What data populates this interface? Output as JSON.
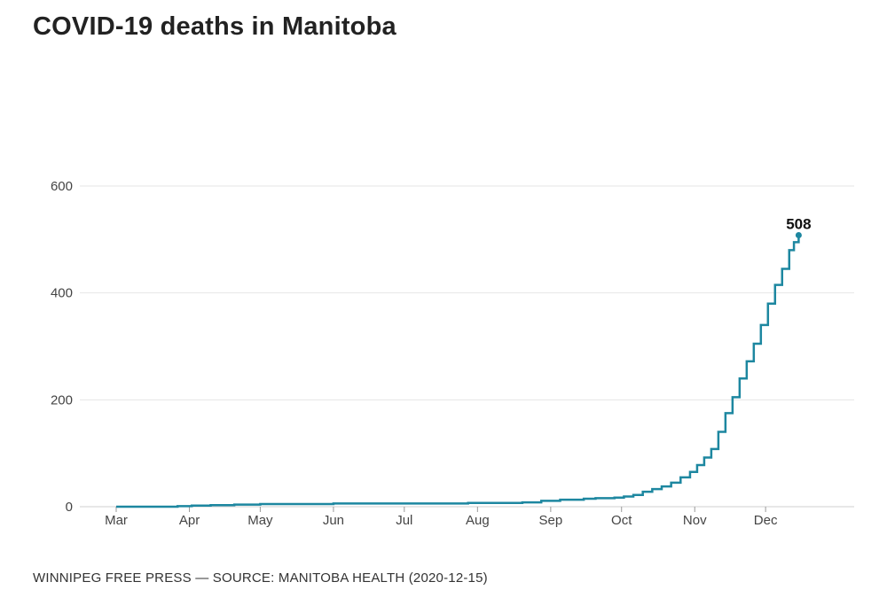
{
  "header": {
    "title": "COVID-19 deaths in Manitoba"
  },
  "footer": {
    "credit": "WINNIPEG FREE PRESS — SOURCE: MANITOBA HEALTH (2020-12-15)"
  },
  "colors": {
    "line": "#1d87a0",
    "grid": "#e6e6e6",
    "axis": "#444444"
  },
  "chart_data": {
    "type": "line",
    "title": "COVID-19 deaths in Manitoba",
    "xlabel": "",
    "ylabel": "",
    "ylim": [
      0,
      600
    ],
    "xlim": [
      "2020-03-01",
      "2020-12-31"
    ],
    "y_ticks": [
      0,
      200,
      400,
      600
    ],
    "x_ticks": [
      {
        "date": "2020-03-01",
        "label": "Mar"
      },
      {
        "date": "2020-04-01",
        "label": "Apr"
      },
      {
        "date": "2020-05-01",
        "label": "May"
      },
      {
        "date": "2020-06-01",
        "label": "Jun"
      },
      {
        "date": "2020-07-01",
        "label": "Jul"
      },
      {
        "date": "2020-08-01",
        "label": "Aug"
      },
      {
        "date": "2020-09-01",
        "label": "Sep"
      },
      {
        "date": "2020-10-01",
        "label": "Oct"
      },
      {
        "date": "2020-11-01",
        "label": "Nov"
      },
      {
        "date": "2020-12-01",
        "label": "Dec"
      }
    ],
    "grid": true,
    "step": true,
    "end_label": "508",
    "series": [
      {
        "x": [
          "2020-03-01",
          "2020-03-27",
          "2020-04-02",
          "2020-04-10",
          "2020-04-20",
          "2020-05-01",
          "2020-06-01",
          "2020-07-01",
          "2020-07-28",
          "2020-08-15",
          "2020-08-20",
          "2020-08-28",
          "2020-09-05",
          "2020-09-15",
          "2020-09-20",
          "2020-09-28",
          "2020-10-02",
          "2020-10-06",
          "2020-10-10",
          "2020-10-14",
          "2020-10-18",
          "2020-10-22",
          "2020-10-26",
          "2020-10-30",
          "2020-11-02",
          "2020-11-05",
          "2020-11-08",
          "2020-11-11",
          "2020-11-14",
          "2020-11-17",
          "2020-11-20",
          "2020-11-23",
          "2020-11-26",
          "2020-11-29",
          "2020-12-02",
          "2020-12-05",
          "2020-12-08",
          "2020-12-11",
          "2020-12-13",
          "2020-12-15"
        ],
        "y": [
          0,
          1,
          2,
          3,
          4,
          5,
          6,
          6,
          7,
          7,
          8,
          11,
          13,
          15,
          16,
          17,
          19,
          22,
          28,
          33,
          38,
          45,
          55,
          65,
          78,
          92,
          108,
          140,
          175,
          205,
          240,
          272,
          305,
          340,
          380,
          415,
          445,
          480,
          495,
          508
        ]
      }
    ]
  }
}
